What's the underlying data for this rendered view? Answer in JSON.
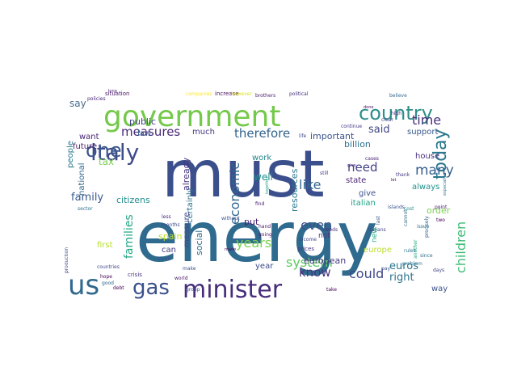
{
  "wordcloud": {
    "words": [
      {
        "text": "energy",
        "color": "#2f6b8e"
      },
      {
        "text": "must",
        "color": "#3b4f8c"
      },
      {
        "text": "government",
        "color": "#74c94a"
      },
      {
        "text": "minister",
        "color": "#472d7b"
      },
      {
        "text": "country",
        "color": "#2d8e8a"
      },
      {
        "text": "italy",
        "color": "#3e4c8a"
      },
      {
        "text": "us",
        "color": "#30688e"
      },
      {
        "text": "gas",
        "color": "#3b518b"
      },
      {
        "text": "one",
        "color": "#39568c"
      },
      {
        "text": "today",
        "color": "#2a778e"
      },
      {
        "text": "system",
        "color": "#5ec962"
      },
      {
        "text": "economic",
        "color": "#31668e"
      },
      {
        "text": "children",
        "color": "#3dbc74"
      },
      {
        "text": "measures",
        "color": "#482878"
      },
      {
        "text": "years",
        "color": "#7ad151"
      },
      {
        "text": "even",
        "color": "#3b528b"
      },
      {
        "text": "therefore",
        "color": "#33638d"
      },
      {
        "text": "time",
        "color": "#472e7c"
      },
      {
        "text": "know",
        "color": "#46327e"
      },
      {
        "text": "like",
        "color": "#31688e"
      },
      {
        "text": "many",
        "color": "#355f8d"
      },
      {
        "text": "need",
        "color": "#424086"
      },
      {
        "text": "family",
        "color": "#38598c"
      },
      {
        "text": "families",
        "color": "#22a785"
      },
      {
        "text": "said",
        "color": "#404688"
      },
      {
        "text": "could",
        "color": "#3f4788"
      },
      {
        "text": "tax",
        "color": "#7ad151"
      },
      {
        "text": "say",
        "color": "#4a6d8c"
      },
      {
        "text": "well",
        "color": "#21918c"
      },
      {
        "text": "euros",
        "color": "#2b748e"
      },
      {
        "text": "right",
        "color": "#2c728e"
      },
      {
        "text": "resources",
        "color": "#2a788e"
      },
      {
        "text": "citizens",
        "color": "#228c8d"
      },
      {
        "text": "already",
        "color": "#46337f"
      },
      {
        "text": "european",
        "color": "#443a83"
      },
      {
        "text": "put",
        "color": "#482173"
      },
      {
        "text": "social",
        "color": "#2e6e8e"
      },
      {
        "text": "public",
        "color": "#414487"
      },
      {
        "text": "law",
        "color": "#355f8d"
      },
      {
        "text": "work",
        "color": "#25858e"
      },
      {
        "text": "spain",
        "color": "#bddf26"
      },
      {
        "text": "important",
        "color": "#3b528b"
      },
      {
        "text": "billion",
        "color": "#2c738e"
      },
      {
        "text": "state",
        "color": "#481f70"
      },
      {
        "text": "italian",
        "color": "#20a486"
      },
      {
        "text": "always",
        "color": "#21918c"
      },
      {
        "text": "give",
        "color": "#3a548c"
      },
      {
        "text": "order",
        "color": "#7ad151"
      },
      {
        "text": "europe",
        "color": "#b8de29"
      },
      {
        "text": "house",
        "color": "#46307e"
      },
      {
        "text": "support",
        "color": "#38598c"
      },
      {
        "text": "first",
        "color": "#b5de2b"
      },
      {
        "text": "want",
        "color": "#482475"
      },
      {
        "text": "future",
        "color": "#481b6d"
      },
      {
        "text": "people",
        "color": "#2a788e"
      },
      {
        "text": "national",
        "color": "#31688e"
      },
      {
        "text": "much",
        "color": "#453781"
      },
      {
        "text": "certainly",
        "color": "#2d708e"
      },
      {
        "text": "can",
        "color": "#443b84"
      },
      {
        "text": "measure",
        "color": "#3e4a89"
      },
      {
        "text": "year",
        "color": "#3d4d8a"
      },
      {
        "text": "way",
        "color": "#3b528b"
      },
      {
        "text": "new",
        "color": "#22a884"
      },
      {
        "text": "not",
        "color": "#453882"
      },
      {
        "text": "situation",
        "color": "#471365"
      },
      {
        "text": "increase",
        "color": "#460b5e"
      },
      {
        "text": "political",
        "color": "#472d7b"
      },
      {
        "text": "brothers",
        "color": "#481b6d"
      },
      {
        "text": "believe",
        "color": "#31688e"
      },
      {
        "text": "crisis",
        "color": "#46327e"
      },
      {
        "text": "countries",
        "color": "#3e4989"
      },
      {
        "text": "production",
        "color": "#3e4a89"
      },
      {
        "text": "prices",
        "color": "#453781"
      },
      {
        "text": "income",
        "color": "#404588"
      },
      {
        "text": "problem",
        "color": "#29798e"
      },
      {
        "text": "since",
        "color": "#2e6d8e"
      },
      {
        "text": "continue",
        "color": "#453882"
      },
      {
        "text": "life",
        "color": "#3e4a89"
      },
      {
        "text": "needs",
        "color": "#472a7a"
      },
      {
        "text": "think",
        "color": "#3a548c"
      },
      {
        "text": "hope",
        "color": "#440154"
      },
      {
        "text": "debt",
        "color": "#440154"
      },
      {
        "text": "good",
        "color": "#31688e"
      },
      {
        "text": "sector",
        "color": "#2c738e"
      },
      {
        "text": "going",
        "color": "#471063"
      },
      {
        "text": "hand",
        "color": "#481668"
      },
      {
        "text": "find",
        "color": "#482173"
      },
      {
        "text": "italians",
        "color": "#3e4989"
      },
      {
        "text": "pay",
        "color": "#3b528b"
      },
      {
        "text": "done",
        "color": "#46085c"
      },
      {
        "text": "high",
        "color": "#472c7a"
      },
      {
        "text": "issue",
        "color": "#2c718e"
      },
      {
        "text": "days",
        "color": "#414487"
      },
      {
        "text": "point",
        "color": "#481a6c"
      },
      {
        "text": "clear",
        "color": "#3e4989"
      },
      {
        "text": "policies",
        "color": "#482475"
      },
      {
        "text": "let",
        "color": "#440154"
      },
      {
        "text": "without",
        "color": "#3b528b"
      },
      {
        "text": "less",
        "color": "#482878"
      },
      {
        "text": "months",
        "color": "#3e4a89"
      },
      {
        "text": "however",
        "color": "#d8e219"
      },
      {
        "text": "companies",
        "color": "#fde725"
      },
      {
        "text": "especially",
        "color": "#2a788e"
      },
      {
        "text": "precisely",
        "color": "#33638d"
      },
      {
        "text": "cannot",
        "color": "#31688e"
      },
      {
        "text": "another",
        "color": "#22a884"
      },
      {
        "text": "islands",
        "color": "#3b528b"
      },
      {
        "text": "two",
        "color": "#440154"
      },
      {
        "text": "take",
        "color": "#440154"
      },
      {
        "text": "world",
        "color": "#481467"
      },
      {
        "text": "group",
        "color": "#3e4a89"
      },
      {
        "text": "make",
        "color": "#3b528b"
      },
      {
        "text": "cost",
        "color": "#21918c"
      },
      {
        "text": "cases",
        "color": "#482475"
      },
      {
        "text": "last",
        "color": "#3b528b"
      },
      {
        "text": "still",
        "color": "#433e85"
      },
      {
        "text": "rules",
        "color": "#2c728e"
      },
      {
        "text": "thank",
        "color": "#453882"
      },
      {
        "text": "long",
        "color": "#48186a"
      },
      {
        "text": "together",
        "color": "#1fa088"
      },
      {
        "text": "made",
        "color": "#46085c"
      },
      {
        "text": "give",
        "color": "#482777"
      }
    ]
  }
}
